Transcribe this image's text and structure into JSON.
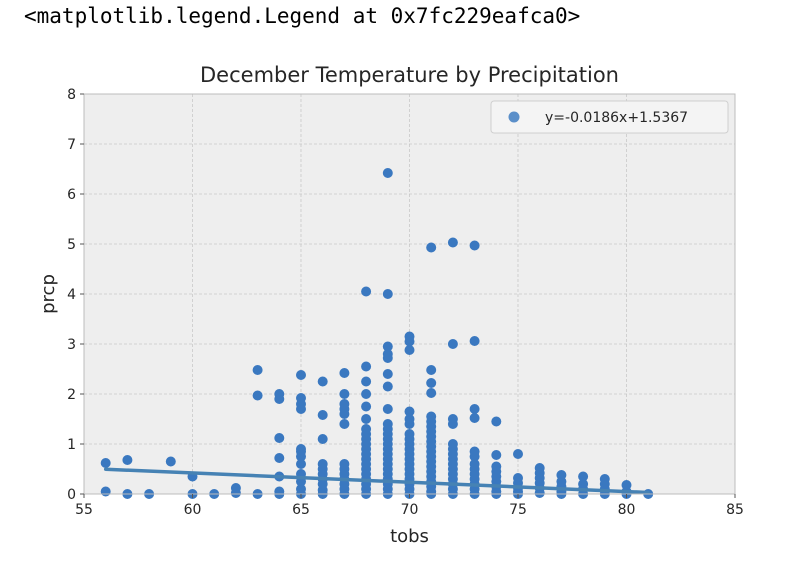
{
  "output_text": "<matplotlib.legend.Legend at 0x7fc229eafca0>",
  "colors": {
    "plot_bg": "#eeeeee",
    "grid": "#c8c8c8",
    "points": "#3a78c0",
    "line": "#4682b4",
    "legend_marker": "#5b8fc9"
  },
  "chart_data": {
    "type": "scatter",
    "title": "December Temperature by Precipitation",
    "xlabel": "tobs",
    "ylabel": "prcp",
    "xlim": [
      55,
      85
    ],
    "ylim": [
      0,
      8
    ],
    "xticks": [
      55,
      60,
      65,
      70,
      75,
      80,
      85
    ],
    "yticks": [
      0,
      1,
      2,
      3,
      4,
      5,
      6,
      7,
      8
    ],
    "grid": true,
    "legend_position": "top-right",
    "legend_label": "y=-0.0186x+1.5367",
    "regression": {
      "slope": -0.0186,
      "intercept": 1.5367,
      "x_range": [
        56,
        81
      ]
    },
    "points": [
      [
        56,
        0.62
      ],
      [
        56,
        0.05
      ],
      [
        57,
        0.68
      ],
      [
        57,
        0.0
      ],
      [
        58,
        0.0
      ],
      [
        59,
        0.65
      ],
      [
        60,
        0.35
      ],
      [
        60,
        0.0
      ],
      [
        61,
        0.0
      ],
      [
        62,
        0.12
      ],
      [
        62,
        0.02
      ],
      [
        63,
        2.48
      ],
      [
        63,
        1.97
      ],
      [
        63,
        0.0
      ],
      [
        64,
        2.0
      ],
      [
        64,
        1.9
      ],
      [
        64,
        1.12
      ],
      [
        64,
        0.72
      ],
      [
        64,
        0.35
      ],
      [
        64,
        0.05
      ],
      [
        64,
        0.0
      ],
      [
        65,
        2.38
      ],
      [
        65,
        1.92
      ],
      [
        65,
        1.8
      ],
      [
        65,
        1.7
      ],
      [
        65,
        0.9
      ],
      [
        65,
        0.85
      ],
      [
        65,
        0.75
      ],
      [
        65,
        0.6
      ],
      [
        65,
        0.4
      ],
      [
        65,
        0.25
      ],
      [
        65,
        0.1
      ],
      [
        65,
        0.0
      ],
      [
        66,
        2.25
      ],
      [
        66,
        1.58
      ],
      [
        66,
        1.1
      ],
      [
        66,
        0.6
      ],
      [
        66,
        0.5
      ],
      [
        66,
        0.4
      ],
      [
        66,
        0.3
      ],
      [
        66,
        0.2
      ],
      [
        66,
        0.08
      ],
      [
        66,
        0.0
      ],
      [
        67,
        2.42
      ],
      [
        67,
        2.0
      ],
      [
        67,
        1.8
      ],
      [
        67,
        1.7
      ],
      [
        67,
        1.6
      ],
      [
        67,
        1.4
      ],
      [
        67,
        0.6
      ],
      [
        67,
        0.5
      ],
      [
        67,
        0.4
      ],
      [
        67,
        0.3
      ],
      [
        67,
        0.2
      ],
      [
        67,
        0.1
      ],
      [
        67,
        0.0
      ],
      [
        68,
        4.05
      ],
      [
        68,
        2.55
      ],
      [
        68,
        2.25
      ],
      [
        68,
        2.0
      ],
      [
        68,
        1.75
      ],
      [
        68,
        1.5
      ],
      [
        68,
        1.3
      ],
      [
        68,
        1.2
      ],
      [
        68,
        1.1
      ],
      [
        68,
        1.0
      ],
      [
        68,
        0.9
      ],
      [
        68,
        0.8
      ],
      [
        68,
        0.7
      ],
      [
        68,
        0.6
      ],
      [
        68,
        0.5
      ],
      [
        68,
        0.4
      ],
      [
        68,
        0.3
      ],
      [
        68,
        0.2
      ],
      [
        68,
        0.1
      ],
      [
        68,
        0.0
      ],
      [
        69,
        6.42
      ],
      [
        69,
        4.0
      ],
      [
        69,
        2.95
      ],
      [
        69,
        2.8
      ],
      [
        69,
        2.72
      ],
      [
        69,
        2.4
      ],
      [
        69,
        2.15
      ],
      [
        69,
        1.7
      ],
      [
        69,
        1.4
      ],
      [
        69,
        1.3
      ],
      [
        69,
        1.2
      ],
      [
        69,
        1.1
      ],
      [
        69,
        1.0
      ],
      [
        69,
        0.9
      ],
      [
        69,
        0.8
      ],
      [
        69,
        0.7
      ],
      [
        69,
        0.6
      ],
      [
        69,
        0.5
      ],
      [
        69,
        0.4
      ],
      [
        69,
        0.3
      ],
      [
        69,
        0.2
      ],
      [
        69,
        0.1
      ],
      [
        69,
        0.0
      ],
      [
        70,
        3.15
      ],
      [
        70,
        3.05
      ],
      [
        70,
        2.88
      ],
      [
        70,
        1.65
      ],
      [
        70,
        1.5
      ],
      [
        70,
        1.4
      ],
      [
        70,
        1.2
      ],
      [
        70,
        1.1
      ],
      [
        70,
        1.0
      ],
      [
        70,
        0.9
      ],
      [
        70,
        0.8
      ],
      [
        70,
        0.7
      ],
      [
        70,
        0.6
      ],
      [
        70,
        0.5
      ],
      [
        70,
        0.4
      ],
      [
        70,
        0.3
      ],
      [
        70,
        0.2
      ],
      [
        70,
        0.1
      ],
      [
        70,
        0.0
      ],
      [
        71,
        4.93
      ],
      [
        71,
        2.48
      ],
      [
        71,
        2.22
      ],
      [
        71,
        2.02
      ],
      [
        71,
        1.55
      ],
      [
        71,
        1.45
      ],
      [
        71,
        1.35
      ],
      [
        71,
        1.25
      ],
      [
        71,
        1.15
      ],
      [
        71,
        1.05
      ],
      [
        71,
        0.95
      ],
      [
        71,
        0.85
      ],
      [
        71,
        0.75
      ],
      [
        71,
        0.65
      ],
      [
        71,
        0.55
      ],
      [
        71,
        0.45
      ],
      [
        71,
        0.35
      ],
      [
        71,
        0.25
      ],
      [
        71,
        0.15
      ],
      [
        71,
        0.05
      ],
      [
        71,
        0.0
      ],
      [
        72,
        5.03
      ],
      [
        72,
        3.0
      ],
      [
        72,
        1.5
      ],
      [
        72,
        1.4
      ],
      [
        72,
        1.0
      ],
      [
        72,
        0.9
      ],
      [
        72,
        0.8
      ],
      [
        72,
        0.7
      ],
      [
        72,
        0.6
      ],
      [
        72,
        0.5
      ],
      [
        72,
        0.4
      ],
      [
        72,
        0.3
      ],
      [
        72,
        0.2
      ],
      [
        72,
        0.1
      ],
      [
        72,
        0.0
      ],
      [
        73,
        4.97
      ],
      [
        73,
        3.06
      ],
      [
        73,
        1.7
      ],
      [
        73,
        1.52
      ],
      [
        73,
        0.85
      ],
      [
        73,
        0.75
      ],
      [
        73,
        0.6
      ],
      [
        73,
        0.5
      ],
      [
        73,
        0.4
      ],
      [
        73,
        0.3
      ],
      [
        73,
        0.2
      ],
      [
        73,
        0.1
      ],
      [
        73,
        0.0
      ],
      [
        74,
        1.45
      ],
      [
        74,
        0.78
      ],
      [
        74,
        0.55
      ],
      [
        74,
        0.45
      ],
      [
        74,
        0.35
      ],
      [
        74,
        0.25
      ],
      [
        74,
        0.15
      ],
      [
        74,
        0.05
      ],
      [
        74,
        0.0
      ],
      [
        75,
        0.8
      ],
      [
        75,
        0.32
      ],
      [
        75,
        0.22
      ],
      [
        75,
        0.12
      ],
      [
        75,
        0.05
      ],
      [
        75,
        0.0
      ],
      [
        76,
        0.52
      ],
      [
        76,
        0.42
      ],
      [
        76,
        0.32
      ],
      [
        76,
        0.22
      ],
      [
        76,
        0.12
      ],
      [
        76,
        0.02
      ],
      [
        77,
        0.38
      ],
      [
        77,
        0.25
      ],
      [
        77,
        0.15
      ],
      [
        77,
        0.05
      ],
      [
        77,
        0.0
      ],
      [
        78,
        0.35
      ],
      [
        78,
        0.2
      ],
      [
        78,
        0.1
      ],
      [
        78,
        0.0
      ],
      [
        79,
        0.3
      ],
      [
        79,
        0.2
      ],
      [
        79,
        0.1
      ],
      [
        79,
        0.0
      ],
      [
        80,
        0.18
      ],
      [
        80,
        0.05
      ],
      [
        80,
        0.0
      ],
      [
        81,
        0.0
      ]
    ]
  }
}
